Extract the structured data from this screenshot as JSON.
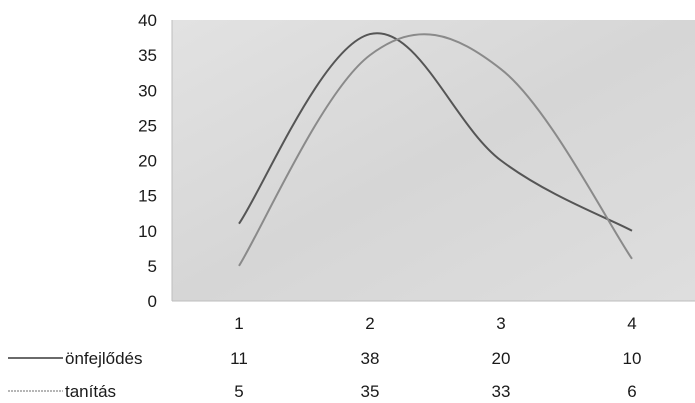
{
  "chart_data": {
    "type": "line",
    "categories": [
      "1",
      "2",
      "3",
      "4"
    ],
    "ylim": [
      0,
      40
    ],
    "yticks": [
      0,
      5,
      10,
      15,
      20,
      25,
      30,
      35,
      40
    ],
    "grid": false,
    "legend": "data-table-below",
    "series": [
      {
        "name": "önfejlődés",
        "values": [
          11,
          38,
          20,
          10
        ],
        "color": "#555555"
      },
      {
        "name": "tanítás",
        "values": [
          5,
          35,
          33,
          6
        ],
        "color": "#8a8a8a"
      }
    ],
    "plot_background": "#dcdcdc"
  }
}
